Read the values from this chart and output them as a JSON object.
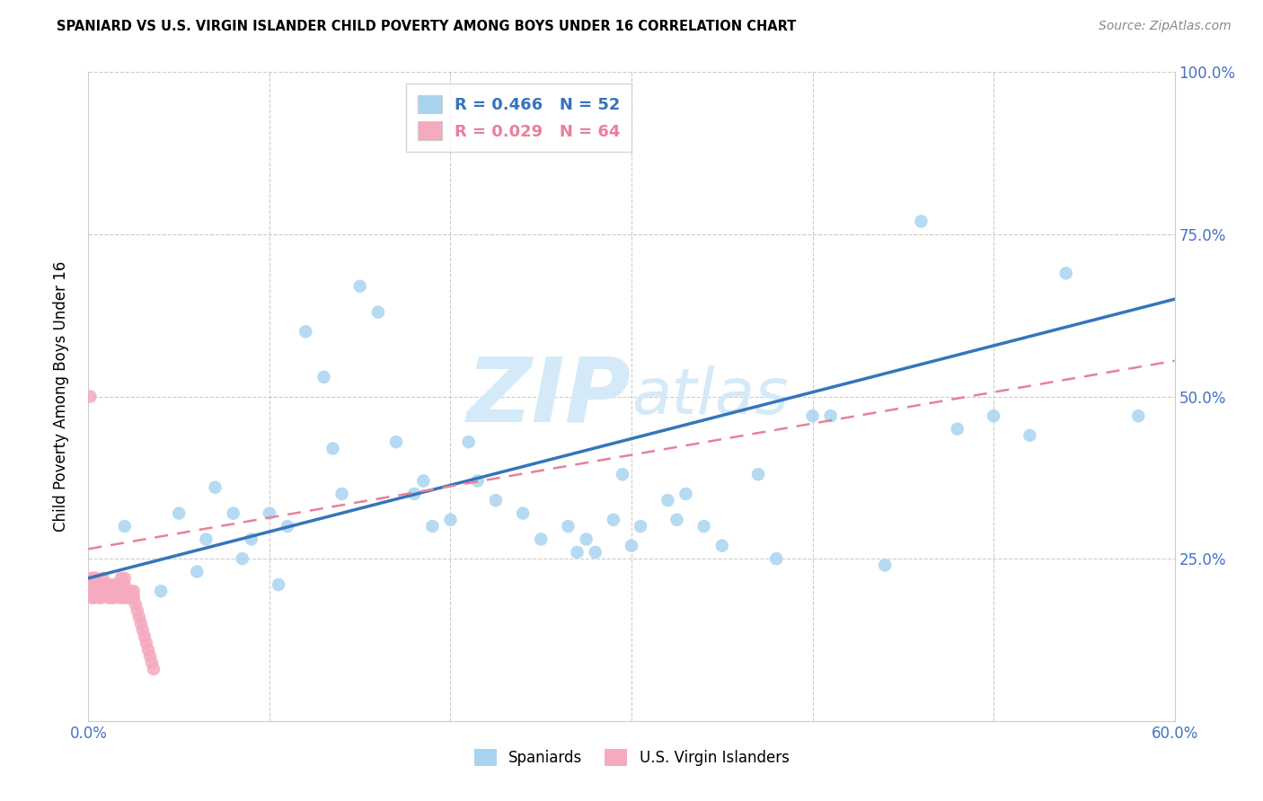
{
  "title": "SPANIARD VS U.S. VIRGIN ISLANDER CHILD POVERTY AMONG BOYS UNDER 16 CORRELATION CHART",
  "source": "Source: ZipAtlas.com",
  "ylabel": "Child Poverty Among Boys Under 16",
  "xlim": [
    0.0,
    0.6
  ],
  "ylim": [
    0.0,
    1.0
  ],
  "xtick_positions": [
    0.0,
    0.1,
    0.2,
    0.3,
    0.4,
    0.5,
    0.6
  ],
  "xtick_labels": [
    "0.0%",
    "",
    "",
    "",
    "",
    "",
    "60.0%"
  ],
  "ytick_positions": [
    0.0,
    0.25,
    0.5,
    0.75,
    1.0
  ],
  "ytick_labels": [
    "",
    "25.0%",
    "50.0%",
    "75.0%",
    "100.0%"
  ],
  "spaniard_R": 0.466,
  "spaniard_N": 52,
  "virgin_R": 0.029,
  "virgin_N": 64,
  "spaniard_color": "#A8D4F0",
  "virgin_color": "#F5AABE",
  "spaniard_line_color": "#3575BB",
  "virgin_line_color": "#E8809A",
  "watermark_color": "#D5EAF8",
  "background_color": "#FFFFFF",
  "grid_color": "#CCCCCC",
  "spaniard_line_x0": 0.0,
  "spaniard_line_y0": 0.22,
  "spaniard_line_x1": 0.6,
  "spaniard_line_y1": 0.65,
  "virgin_line_x0": 0.0,
  "virgin_line_y0": 0.265,
  "virgin_line_x1": 0.6,
  "virgin_line_y1": 0.555,
  "spaniard_x": [
    0.02,
    0.04,
    0.05,
    0.06,
    0.065,
    0.07,
    0.08,
    0.085,
    0.09,
    0.1,
    0.105,
    0.11,
    0.12,
    0.13,
    0.135,
    0.14,
    0.15,
    0.16,
    0.17,
    0.18,
    0.185,
    0.19,
    0.2,
    0.21,
    0.215,
    0.225,
    0.24,
    0.25,
    0.265,
    0.27,
    0.275,
    0.28,
    0.29,
    0.295,
    0.3,
    0.305,
    0.32,
    0.325,
    0.33,
    0.34,
    0.35,
    0.37,
    0.38,
    0.4,
    0.41,
    0.44,
    0.46,
    0.48,
    0.5,
    0.52,
    0.54,
    0.58
  ],
  "spaniard_y": [
    0.3,
    0.2,
    0.32,
    0.23,
    0.28,
    0.36,
    0.32,
    0.25,
    0.28,
    0.32,
    0.21,
    0.3,
    0.6,
    0.53,
    0.42,
    0.35,
    0.67,
    0.63,
    0.43,
    0.35,
    0.37,
    0.3,
    0.31,
    0.43,
    0.37,
    0.34,
    0.32,
    0.28,
    0.3,
    0.26,
    0.28,
    0.26,
    0.31,
    0.38,
    0.27,
    0.3,
    0.34,
    0.31,
    0.35,
    0.3,
    0.27,
    0.38,
    0.25,
    0.47,
    0.47,
    0.24,
    0.77,
    0.45,
    0.47,
    0.44,
    0.69,
    0.47
  ],
  "virgin_x": [
    0.002,
    0.002,
    0.002,
    0.002,
    0.003,
    0.003,
    0.003,
    0.003,
    0.004,
    0.004,
    0.004,
    0.005,
    0.005,
    0.006,
    0.006,
    0.007,
    0.007,
    0.008,
    0.008,
    0.008,
    0.009,
    0.009,
    0.01,
    0.01,
    0.011,
    0.011,
    0.012,
    0.012,
    0.013,
    0.013,
    0.014,
    0.014,
    0.015,
    0.015,
    0.016,
    0.017,
    0.017,
    0.018,
    0.018,
    0.019,
    0.019,
    0.02,
    0.02,
    0.021,
    0.021,
    0.022,
    0.022,
    0.023,
    0.023,
    0.024,
    0.025,
    0.025,
    0.026,
    0.027,
    0.028,
    0.029,
    0.03,
    0.031,
    0.032,
    0.033,
    0.034,
    0.035,
    0.036,
    0.001
  ],
  "virgin_y": [
    0.22,
    0.21,
    0.2,
    0.19,
    0.22,
    0.21,
    0.2,
    0.19,
    0.22,
    0.21,
    0.2,
    0.21,
    0.2,
    0.2,
    0.19,
    0.2,
    0.19,
    0.22,
    0.21,
    0.2,
    0.21,
    0.2,
    0.21,
    0.2,
    0.2,
    0.19,
    0.21,
    0.2,
    0.2,
    0.19,
    0.2,
    0.19,
    0.21,
    0.2,
    0.21,
    0.2,
    0.19,
    0.22,
    0.21,
    0.2,
    0.19,
    0.22,
    0.21,
    0.2,
    0.19,
    0.2,
    0.19,
    0.2,
    0.19,
    0.19,
    0.2,
    0.19,
    0.18,
    0.17,
    0.16,
    0.15,
    0.14,
    0.13,
    0.12,
    0.11,
    0.1,
    0.09,
    0.08,
    0.5
  ]
}
